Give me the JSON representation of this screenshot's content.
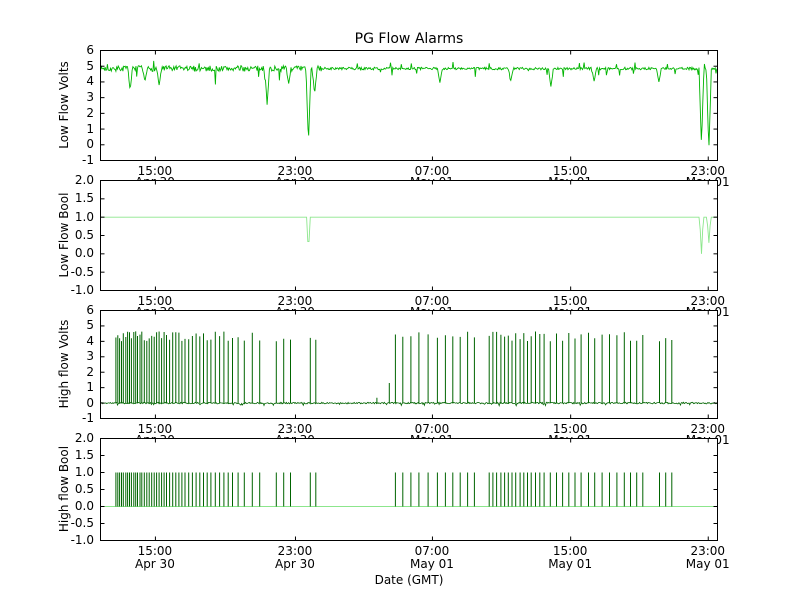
{
  "title": "PG Flow Alarms",
  "xlabel": "Date (GMT)",
  "background": "#ffffff",
  "xaxis": {
    "positions": [
      0.089,
      0.316,
      0.538,
      0.762,
      0.985
    ],
    "times": [
      "15:00",
      "23:00",
      "07:00",
      "15:00",
      "23:00"
    ],
    "dates": [
      "Apr 30",
      "Apr 30",
      "May 01",
      "May 01",
      "May 01"
    ]
  },
  "chart_data": [
    {
      "type": "line",
      "name": "low-flow-volts",
      "ylabel": "Low Flow Volts",
      "color": "#00b400",
      "ylim": [
        -1,
        6
      ],
      "ytick_vals": [
        6,
        5,
        4,
        3,
        2,
        1,
        0,
        -1
      ],
      "ytick_labels": [
        "6",
        "5",
        "4",
        "3",
        "2",
        "1",
        "0",
        "-1"
      ],
      "baseline": 4.85,
      "noise": [
        0.18,
        0.08
      ],
      "seed": 7,
      "points": 800,
      "dips": [
        [
          0.048,
          3.5
        ],
        [
          0.072,
          4.0
        ],
        [
          0.095,
          3.8
        ],
        [
          0.27,
          2.55
        ],
        [
          0.305,
          3.9
        ],
        [
          0.337,
          0.0
        ],
        [
          0.347,
          3.2
        ],
        [
          0.55,
          3.95
        ],
        [
          0.665,
          4.1
        ],
        [
          0.73,
          3.7
        ],
        [
          0.8,
          4.05
        ],
        [
          0.905,
          4.0
        ],
        [
          0.974,
          0.0
        ],
        [
          0.986,
          -0.35
        ]
      ]
    },
    {
      "type": "line",
      "name": "low-flow-bool",
      "ylabel": "Low Flow Bool",
      "color": "#8ce68c",
      "ylim": [
        -1,
        2
      ],
      "ytick_vals": [
        2,
        1.5,
        1,
        0.5,
        0,
        -0.5,
        -1
      ],
      "ytick_labels": [
        "2.0",
        "1.5",
        "1.0",
        "0.5",
        "0.0",
        "-0.5",
        "-1.0"
      ],
      "baseline": 1.0,
      "seed": 3,
      "points": 500,
      "dips": [
        [
          0.337,
          0.0,
          0.003
        ],
        [
          0.974,
          0.0,
          0.003
        ],
        [
          0.986,
          0.3,
          0.003
        ]
      ]
    },
    {
      "type": "spikes",
      "name": "high-flow-volts",
      "ylabel": "High flow Volts",
      "color": "#006400",
      "ylim": [
        -1,
        6
      ],
      "ytick_vals": [
        6,
        5,
        4,
        3,
        2,
        1,
        0,
        -1
      ],
      "ytick_labels": [
        "6",
        "5",
        "4",
        "3",
        "2",
        "1",
        "0",
        "-1"
      ],
      "baseline": 0,
      "base_noise": 0.05,
      "seed": 11,
      "spike_height_range": [
        4.0,
        4.65
      ],
      "spike_xs": [
        0.025,
        0.028,
        0.031,
        0.034,
        0.037,
        0.041,
        0.044,
        0.047,
        0.05,
        0.054,
        0.057,
        0.06,
        0.064,
        0.067,
        0.071,
        0.075,
        0.079,
        0.083,
        0.087,
        0.091,
        0.095,
        0.099,
        0.103,
        0.107,
        0.112,
        0.117,
        0.122,
        0.127,
        0.132,
        0.137,
        0.143,
        0.149,
        0.155,
        0.161,
        0.167,
        0.173,
        0.179,
        0.186,
        0.193,
        0.2,
        0.207,
        0.214,
        0.223,
        0.233,
        0.246,
        0.258,
        0.285,
        0.297,
        0.308,
        0.34,
        0.349,
        0.478,
        0.49,
        0.503,
        0.516,
        0.531,
        0.546,
        0.559,
        0.571,
        0.583,
        0.595,
        0.606,
        0.63,
        0.636,
        0.642,
        0.649,
        0.655,
        0.661,
        0.667,
        0.673,
        0.68,
        0.686,
        0.692,
        0.698,
        0.705,
        0.712,
        0.719,
        0.729,
        0.739,
        0.749,
        0.759,
        0.769,
        0.779,
        0.791,
        0.801,
        0.813,
        0.825,
        0.837,
        0.849,
        0.859,
        0.869,
        0.879,
        0.906,
        0.916,
        0.926
      ],
      "small_spikes": [
        [
          0.448,
          0.35
        ],
        [
          0.468,
          1.3
        ]
      ]
    },
    {
      "type": "bool-spikes",
      "name": "high-flow-bool",
      "ylabel": "High flow Bool",
      "color": "#006400",
      "baseline_color": "#8ce68c",
      "ylim": [
        -1,
        2
      ],
      "ytick_vals": [
        2,
        1.5,
        1,
        0.5,
        0,
        -0.5,
        -1
      ],
      "ytick_labels": [
        "2.0",
        "1.5",
        "1.0",
        "0.5",
        "0.0",
        "-0.5",
        "-1.0"
      ],
      "spike_height": 1.0,
      "spikes_source": 2,
      "seed": 5
    }
  ]
}
